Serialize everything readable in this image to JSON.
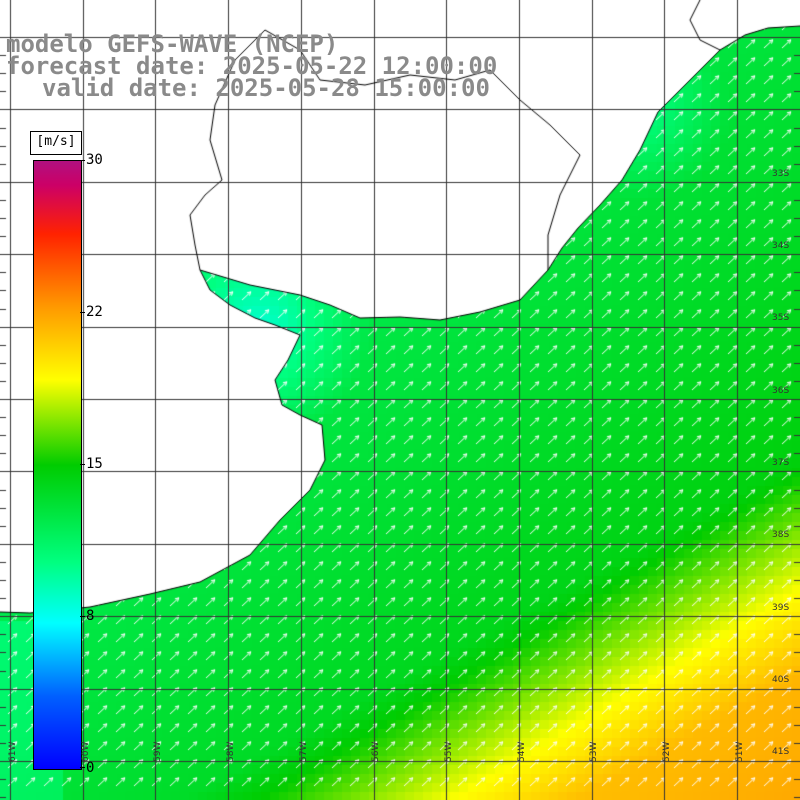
{
  "title": {
    "line1": "modelo GEFS-WAVE (NCEP)",
    "line2": "forecast date: 2025-05-22 12:00:00",
    "line3": "valid date: 2025-05-28 15:00:00"
  },
  "colorbar": {
    "unit": "[m/s]",
    "min": 0,
    "max": 30,
    "ticks": [
      {
        "label": "30",
        "value": 30
      },
      {
        "label": "22",
        "value": 22
      },
      {
        "label": "15",
        "value": 15
      },
      {
        "label": "8",
        "value": 8
      },
      {
        "label": "0",
        "value": 0
      }
    ]
  },
  "lat_labels": [
    "33S",
    "34S",
    "35S",
    "36S",
    "37S",
    "38S",
    "39S",
    "40S",
    "41S"
  ],
  "lon_labels": [
    "61W",
    "60W",
    "59W",
    "58W",
    "57W",
    "56W",
    "55W",
    "54W",
    "53W",
    "52W",
    "51W"
  ],
  "colors": {
    "grid": "#333333",
    "coast": "#000000",
    "arrows": "#ffffff",
    "title": "#8a8a8a"
  }
}
